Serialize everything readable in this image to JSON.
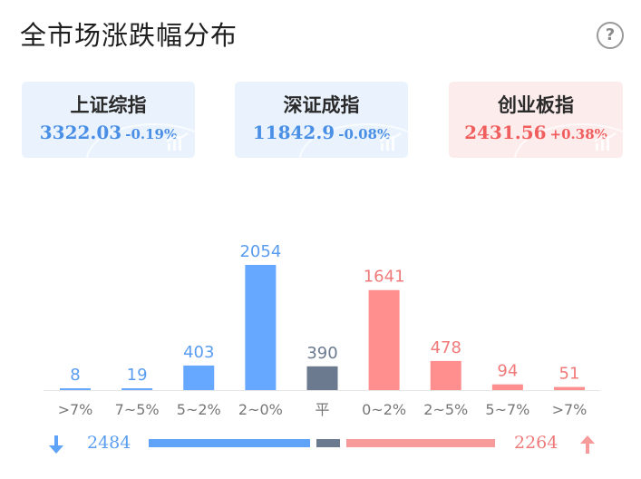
{
  "header": {
    "title": "全市场涨跌幅分布",
    "help_glyph": "?"
  },
  "indices": [
    {
      "name": "上证综指",
      "value": "3322.03",
      "change": "-0.19%",
      "tone": "down"
    },
    {
      "name": "深证成指",
      "value": "11842.9",
      "change": "-0.08%",
      "tone": "down"
    },
    {
      "name": "创业板指",
      "value": "2431.56",
      "change": "+0.38%",
      "tone": "up"
    }
  ],
  "colors": {
    "down": "#66a8ff",
    "flat": "#6b7a8f",
    "up": "#ff8f8f",
    "down_label": "#5a9df0",
    "up_label": "#f07a7a",
    "axis_label": "#777777"
  },
  "chart_data": {
    "type": "bar",
    "categories": [
      ">7%",
      "7~5%",
      "5~2%",
      "2~0%",
      "平",
      "0~2%",
      "2~5%",
      "5~7%",
      ">7%"
    ],
    "values": [
      8,
      19,
      403,
      2054,
      390,
      1641,
      478,
      94,
      51
    ],
    "bar_colors": [
      "down",
      "down",
      "down",
      "down",
      "flat",
      "up",
      "up",
      "up",
      "up"
    ],
    "title": "",
    "xlabel": "",
    "ylabel": "",
    "ylim": [
      0,
      2054
    ],
    "grid": false,
    "legend": "none"
  },
  "summary": {
    "down_total": "2484",
    "up_total": "2264",
    "down_icon": "arrow-down-icon",
    "up_icon": "arrow-up-icon"
  }
}
